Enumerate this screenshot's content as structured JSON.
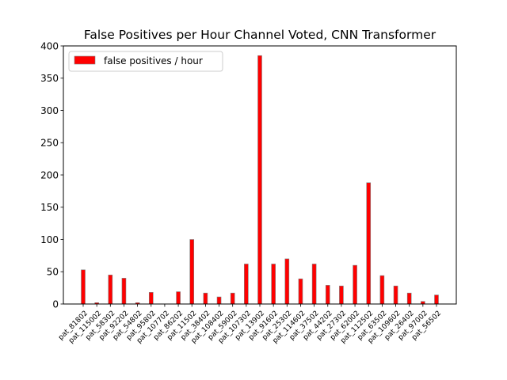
{
  "chart_data": {
    "type": "bar",
    "title": "False Positives per Hour Channel Voted, CNN Transformer",
    "xlabel": "",
    "ylabel": "",
    "ylim": [
      0,
      400
    ],
    "yticks": [
      0,
      50,
      100,
      150,
      200,
      250,
      300,
      350,
      400
    ],
    "grid": false,
    "legend": {
      "placement": "upper-left",
      "entries": [
        "false positives / hour"
      ]
    },
    "categories": [
      "pat_81802",
      "pat_115002",
      "pat_58302",
      "pat_92202",
      "pat_54802",
      "pat_95802",
      "pat_107702",
      "pat_86202",
      "pat_11502",
      "pat_38402",
      "pat_108402",
      "pat_59002",
      "pat_107302",
      "pat_13902",
      "pat_91602",
      "pat_25302",
      "pat_114602",
      "pat_37502",
      "pat_44202",
      "pat_27302",
      "pat_62002",
      "pat_112502",
      "pat_63502",
      "pat_109602",
      "pat_26402",
      "pat_97002",
      "pat_56502"
    ],
    "series": [
      {
        "name": "false positives / hour",
        "color": "#ff0000",
        "edgecolor": "#808080",
        "values": [
          53,
          2,
          45,
          40,
          2,
          18,
          0,
          19,
          100,
          17,
          11,
          17,
          62,
          385,
          62,
          70,
          39,
          62,
          29,
          28,
          60,
          188,
          44,
          28,
          17,
          4,
          14
        ]
      }
    ]
  }
}
